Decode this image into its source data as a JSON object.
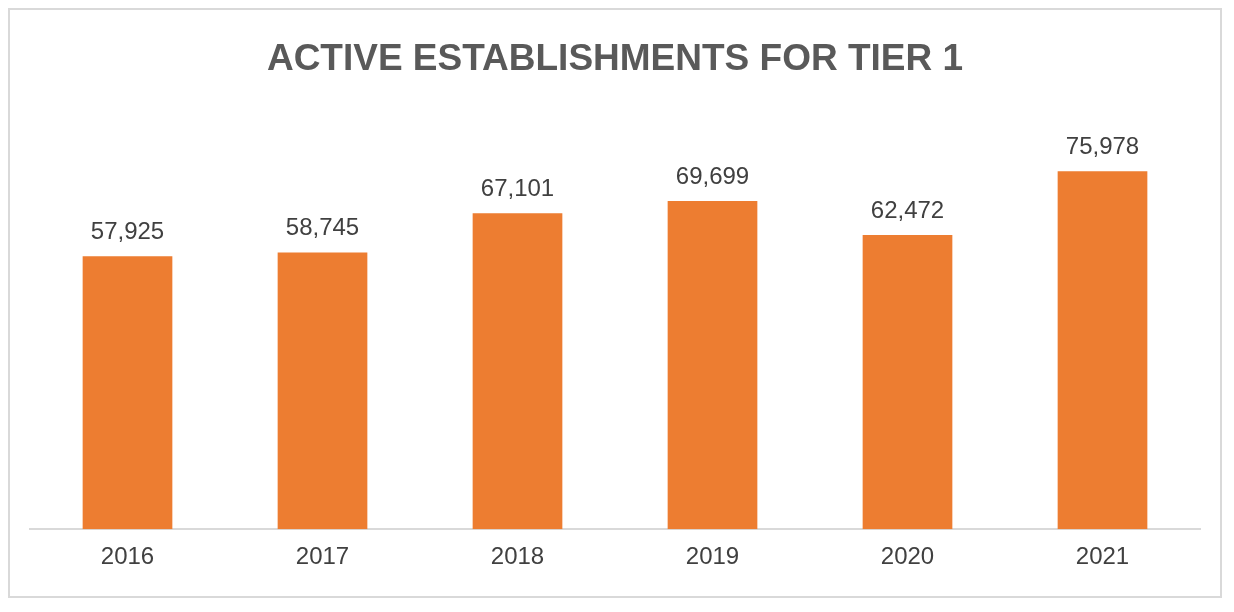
{
  "chart_data": {
    "type": "bar",
    "title": "ACTIVE ESTABLISHMENTS FOR TIER 1",
    "categories": [
      "2016",
      "2017",
      "2018",
      "2019",
      "2020",
      "2021"
    ],
    "values": [
      57925,
      58745,
      67101,
      69699,
      62472,
      75978
    ],
    "value_labels": [
      "57,925",
      "58,745",
      "67,101",
      "69,699",
      "62,472",
      "75,978"
    ],
    "color": "#ed7d31",
    "grid": false,
    "legend": false
  }
}
